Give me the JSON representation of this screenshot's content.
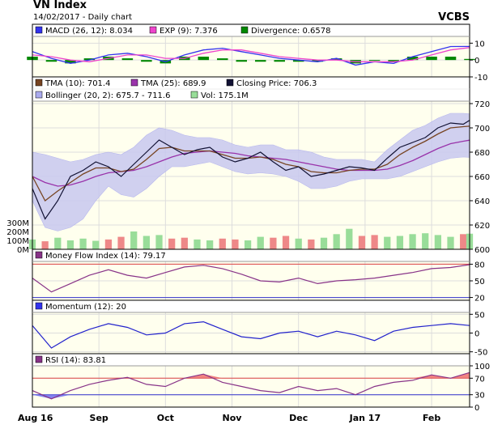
{
  "header": {
    "title": "VN Index",
    "subtitle": "14/02/2017 - Daily chart",
    "source": "VCBS"
  },
  "x_axis_labels": [
    "Aug 16",
    "Sep",
    "Oct",
    "Nov",
    "Dec",
    "Jan 17",
    "Feb"
  ],
  "colors": {
    "panel_bg": "#ffffee",
    "grid": "#dddddd",
    "border": "#000000",
    "red_line": "#dd4444",
    "blue_line": "#3333cc",
    "green_bar": "#99dd99",
    "red_bar": "#ee8888",
    "purple": "#9933aa",
    "brown": "#774422",
    "dark": "#111133",
    "bollinger": "#c8c8f0",
    "macd_green": "#008800",
    "exp_magenta": "#ee44cc"
  },
  "chart_data": [
    {
      "type": "line",
      "panel": "macd",
      "legend": [
        {
          "label": "MACD (26, 12): 8.034",
          "color": "#3333ee"
        },
        {
          "label": "EXP (9): 7.376",
          "color": "#ee44cc"
        },
        {
          "label": "Divergence: 0.6578",
          "color": "#008800"
        }
      ],
      "ylim": [
        -10,
        14
      ],
      "yticks": [
        {
          "v": 10,
          "t": "10"
        },
        {
          "v": 0,
          "t": "0"
        },
        {
          "v": -10,
          "t": "-10"
        }
      ],
      "x": [
        0,
        6,
        12,
        18,
        24,
        30,
        36,
        42,
        48,
        54,
        60,
        66,
        72,
        78,
        84,
        90,
        96,
        102,
        108,
        114,
        120,
        126,
        132,
        138
      ],
      "series": [
        {
          "name": "MACD",
          "values": [
            5,
            1,
            -2,
            0,
            3,
            4,
            2,
            -1,
            3,
            6,
            7,
            5,
            3,
            1,
            0,
            -1,
            1,
            -3,
            -1,
            -2,
            2,
            5,
            8,
            8.034
          ],
          "color": "#3333ee"
        },
        {
          "name": "EXP",
          "values": [
            3,
            2,
            0,
            -1,
            1,
            3,
            3,
            1,
            1,
            4,
            6,
            6,
            4,
            2,
            1,
            0,
            0,
            -1,
            -1,
            -1,
            0,
            3,
            6,
            7.376
          ],
          "color": "#ee44cc"
        }
      ],
      "divergence": [
        2,
        -1,
        -2,
        1,
        2,
        1,
        -1,
        -2,
        2,
        2,
        1,
        -1,
        -1,
        -1,
        -1,
        -1,
        1,
        -2,
        0,
        -1,
        2,
        2,
        2,
        0.6578
      ]
    },
    {
      "type": "line",
      "panel": "price",
      "legend": [
        {
          "label": "TMA (10): 701.4",
          "color": "#774422"
        },
        {
          "label": "TMA (25): 689.9",
          "color": "#9933aa"
        },
        {
          "label": "Closing Price: 706.3",
          "color": "#111133"
        },
        {
          "label": "Bollinger (20, 2): 675.7 - 711.6",
          "color": "#aaaaee"
        },
        {
          "label": "Vol: 175.1M",
          "color": "#99dd99"
        }
      ],
      "ylim": [
        600,
        722
      ],
      "yticks": [
        {
          "v": 720,
          "t": "720"
        },
        {
          "v": 700,
          "t": "700"
        },
        {
          "v": 680,
          "t": "680"
        },
        {
          "v": 660,
          "t": "660"
        },
        {
          "v": 640,
          "t": "640"
        },
        {
          "v": 620,
          "t": "620"
        },
        {
          "v": 600,
          "t": "600"
        }
      ],
      "vol_ticks": [
        {
          "v": 300,
          "t": "300M"
        },
        {
          "v": 200,
          "t": "200M"
        },
        {
          "v": 100,
          "t": "100M"
        },
        {
          "v": 0,
          "t": "0M"
        }
      ],
      "x": [
        0,
        4,
        8,
        12,
        16,
        20,
        24,
        28,
        32,
        36,
        40,
        44,
        48,
        52,
        56,
        60,
        64,
        68,
        72,
        76,
        80,
        84,
        88,
        92,
        96,
        100,
        104,
        108,
        112,
        116,
        120,
        124,
        128,
        132,
        136,
        138
      ],
      "close": [
        650,
        625,
        640,
        660,
        665,
        672,
        668,
        660,
        670,
        680,
        690,
        684,
        678,
        682,
        684,
        676,
        672,
        675,
        680,
        672,
        665,
        668,
        660,
        662,
        665,
        668,
        667,
        665,
        675,
        684,
        688,
        692,
        700,
        704,
        703,
        706.3
      ],
      "tma10": [
        660,
        640,
        648,
        655,
        662,
        667,
        667,
        664,
        666,
        674,
        683,
        684,
        681,
        681,
        681,
        678,
        675,
        675,
        676,
        674,
        670,
        668,
        664,
        663,
        663,
        665,
        666,
        666,
        670,
        678,
        684,
        689,
        695,
        700,
        701,
        701.4
      ],
      "tma25": [
        660,
        655,
        652,
        653,
        656,
        660,
        663,
        664,
        665,
        668,
        672,
        676,
        679,
        680,
        681,
        680,
        679,
        677,
        676,
        675,
        674,
        672,
        670,
        668,
        666,
        665,
        665,
        665,
        666,
        669,
        673,
        678,
        683,
        687,
        689,
        689.9
      ],
      "boll_up": [
        680,
        678,
        675,
        672,
        674,
        678,
        680,
        678,
        684,
        694,
        700,
        698,
        694,
        692,
        692,
        690,
        686,
        684,
        686,
        686,
        682,
        682,
        680,
        676,
        674,
        674,
        674,
        672,
        682,
        690,
        698,
        702,
        708,
        712,
        712,
        711.6
      ],
      "boll_low": [
        640,
        618,
        615,
        618,
        625,
        640,
        652,
        645,
        643,
        650,
        660,
        668,
        668,
        670,
        672,
        668,
        664,
        662,
        663,
        662,
        660,
        656,
        650,
        650,
        652,
        656,
        658,
        658,
        658,
        660,
        664,
        668,
        672,
        675,
        676,
        675.7
      ],
      "volume": [
        110,
        90,
        130,
        100,
        120,
        95,
        110,
        140,
        200,
        150,
        160,
        120,
        130,
        110,
        100,
        120,
        110,
        100,
        140,
        130,
        150,
        120,
        110,
        130,
        170,
        230,
        150,
        160,
        140,
        150,
        170,
        180,
        160,
        140,
        170,
        175.1
      ]
    },
    {
      "type": "line",
      "panel": "mfi",
      "legend": [
        {
          "label": "Money Flow Index (14): 79.17",
          "color": "#883388"
        }
      ],
      "ylim": [
        15,
        85
      ],
      "yticks": [
        {
          "v": 80,
          "t": "80"
        },
        {
          "v": 50,
          "t": "50"
        },
        {
          "v": 20,
          "t": "20"
        }
      ],
      "x": [
        0,
        6,
        12,
        18,
        24,
        30,
        36,
        42,
        48,
        54,
        60,
        66,
        72,
        78,
        84,
        90,
        96,
        102,
        108,
        114,
        120,
        126,
        132,
        138
      ],
      "values": [
        55,
        30,
        45,
        60,
        70,
        60,
        55,
        65,
        75,
        78,
        72,
        62,
        50,
        48,
        55,
        45,
        50,
        52,
        55,
        60,
        65,
        72,
        74,
        79.17
      ]
    },
    {
      "type": "line",
      "panel": "momentum",
      "legend": [
        {
          "label": "Momentum (12): 20",
          "color": "#3333ee"
        }
      ],
      "ylim": [
        -55,
        55
      ],
      "yticks": [
        {
          "v": 50,
          "t": "50"
        },
        {
          "v": 0,
          "t": "0"
        },
        {
          "v": -50,
          "t": "-50"
        }
      ],
      "x": [
        0,
        6,
        12,
        18,
        24,
        30,
        36,
        42,
        48,
        54,
        60,
        66,
        72,
        78,
        84,
        90,
        96,
        102,
        108,
        114,
        120,
        126,
        132,
        138
      ],
      "values": [
        20,
        -40,
        -10,
        10,
        25,
        15,
        -5,
        0,
        25,
        30,
        10,
        -10,
        -15,
        0,
        5,
        -10,
        5,
        -5,
        -20,
        5,
        15,
        20,
        25,
        20
      ]
    },
    {
      "type": "line",
      "panel": "rsi",
      "legend": [
        {
          "label": "RSI (14): 83.81",
          "color": "#883388"
        }
      ],
      "ylim": [
        0,
        100
      ],
      "yticks": [
        {
          "v": 100,
          "t": "100"
        },
        {
          "v": 70,
          "t": "70"
        },
        {
          "v": 30,
          "t": "30"
        },
        {
          "v": 0,
          "t": "0"
        }
      ],
      "x": [
        0,
        6,
        12,
        18,
        24,
        30,
        36,
        42,
        48,
        54,
        60,
        66,
        72,
        78,
        84,
        90,
        96,
        102,
        108,
        114,
        120,
        126,
        132,
        138
      ],
      "values": [
        40,
        20,
        40,
        55,
        65,
        72,
        55,
        50,
        70,
        80,
        60,
        50,
        40,
        35,
        50,
        40,
        45,
        30,
        50,
        60,
        65,
        78,
        70,
        83.81
      ]
    }
  ]
}
